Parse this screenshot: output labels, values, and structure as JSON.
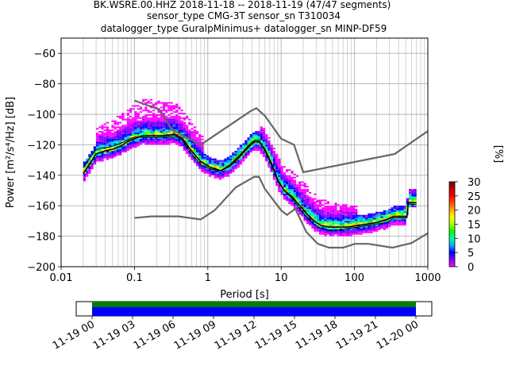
{
  "chart_data": {
    "type": "ppsd",
    "title_lines": [
      "BK.WSRE.00.HHZ   2018-11-18 -- 2018-11-19  (47/47 segments)",
      "sensor_type CMG-3T sensor_sn T310034",
      "datalogger_type GuralpMinimus+ datalogger_sn MINP-DF59"
    ],
    "xlabel": "Period [s]",
    "ylabel": "Power [m²/s⁴/Hz] [dB]",
    "x_scale": "log",
    "xlim": [
      0.01,
      1000
    ],
    "ylim": [
      -200,
      -50
    ],
    "x_ticks": [
      {
        "value": 0.01,
        "label": "0.01"
      },
      {
        "value": 0.1,
        "label": "0.1"
      },
      {
        "value": 1,
        "label": "1"
      },
      {
        "value": 10,
        "label": "10"
      },
      {
        "value": 100,
        "label": "100"
      },
      {
        "value": 1000,
        "label": "1000"
      }
    ],
    "y_ticks": [
      {
        "value": -60,
        "label": "−60"
      },
      {
        "value": -80,
        "label": "−80"
      },
      {
        "value": -100,
        "label": "−100"
      },
      {
        "value": -120,
        "label": "−120"
      },
      {
        "value": -140,
        "label": "−140"
      },
      {
        "value": -160,
        "label": "−160"
      },
      {
        "value": -180,
        "label": "−180"
      },
      {
        "value": -200,
        "label": "−200"
      }
    ],
    "grid": true,
    "noise_model_high": [
      [
        0.1,
        -91
      ],
      [
        0.22,
        -97
      ],
      [
        0.32,
        -110
      ],
      [
        0.8,
        -120
      ],
      [
        3.8,
        -98
      ],
      [
        4.6,
        -96
      ],
      [
        6,
        -101
      ],
      [
        10,
        -116
      ],
      [
        15,
        -120
      ],
      [
        20,
        -138
      ],
      [
        354,
        -126
      ],
      [
        1000,
        -111
      ]
    ],
    "noise_model_low": [
      [
        0.1,
        -168
      ],
      [
        0.17,
        -167
      ],
      [
        0.4,
        -167
      ],
      [
        0.8,
        -169
      ],
      [
        1.24,
        -163
      ],
      [
        2.4,
        -148
      ],
      [
        4.3,
        -141
      ],
      [
        5,
        -141
      ],
      [
        6,
        -149
      ],
      [
        10,
        -163
      ],
      [
        12,
        -166
      ],
      [
        15.6,
        -162
      ],
      [
        21.9,
        -177
      ],
      [
        31.6,
        -185
      ],
      [
        45,
        -187.5
      ],
      [
        70,
        -187.5
      ],
      [
        101,
        -185
      ],
      [
        154,
        -185
      ],
      [
        328,
        -187.5
      ],
      [
        600,
        -184.5
      ],
      [
        1000,
        -178
      ]
    ],
    "mean_curve": [
      [
        0.02,
        -139
      ],
      [
        0.025,
        -132
      ],
      [
        0.03,
        -126
      ],
      [
        0.04,
        -124
      ],
      [
        0.05,
        -123
      ],
      [
        0.065,
        -121
      ],
      [
        0.08,
        -118
      ],
      [
        0.1,
        -116
      ],
      [
        0.13,
        -114
      ],
      [
        0.18,
        -114
      ],
      [
        0.26,
        -114
      ],
      [
        0.35,
        -113
      ],
      [
        0.45,
        -116
      ],
      [
        0.6,
        -124
      ],
      [
        0.8,
        -131
      ],
      [
        1.1,
        -135
      ],
      [
        1.5,
        -137
      ],
      [
        2,
        -134
      ],
      [
        2.7,
        -128
      ],
      [
        3.5,
        -122
      ],
      [
        4.3,
        -118
      ],
      [
        5,
        -118
      ],
      [
        6,
        -123
      ],
      [
        7.5,
        -133
      ],
      [
        9,
        -143
      ],
      [
        11,
        -150
      ],
      [
        14,
        -154
      ],
      [
        18,
        -160
      ],
      [
        22,
        -165
      ],
      [
        28,
        -170
      ],
      [
        35,
        -173
      ],
      [
        45,
        -174
      ],
      [
        60,
        -174
      ],
      [
        80,
        -174
      ],
      [
        110,
        -173
      ],
      [
        150,
        -172
      ],
      [
        200,
        -171
      ],
      [
        280,
        -169
      ],
      [
        340,
        -167
      ],
      [
        430,
        -167
      ],
      [
        520,
        -167
      ],
      [
        540,
        -158
      ],
      [
        700,
        -158
      ]
    ],
    "mode_curve": [
      [
        0.02,
        -135
      ],
      [
        0.025,
        -128
      ],
      [
        0.03,
        -123
      ],
      [
        0.04,
        -122
      ],
      [
        0.05,
        -121
      ],
      [
        0.065,
        -119
      ],
      [
        0.08,
        -117
      ],
      [
        0.1,
        -115
      ],
      [
        0.13,
        -115
      ],
      [
        0.18,
        -115
      ],
      [
        0.26,
        -115
      ],
      [
        0.35,
        -114
      ],
      [
        0.45,
        -117
      ],
      [
        0.6,
        -126
      ],
      [
        0.8,
        -133
      ],
      [
        1.1,
        -136
      ],
      [
        1.5,
        -137
      ],
      [
        2,
        -133
      ],
      [
        2.7,
        -127
      ],
      [
        3.5,
        -121
      ],
      [
        4.3,
        -117
      ],
      [
        5,
        -117
      ],
      [
        6,
        -124
      ],
      [
        7.5,
        -134
      ],
      [
        9,
        -144
      ],
      [
        11,
        -150
      ],
      [
        14,
        -155
      ],
      [
        18,
        -162
      ],
      [
        22,
        -167
      ],
      [
        28,
        -172
      ],
      [
        35,
        -175
      ],
      [
        45,
        -176
      ],
      [
        60,
        -176
      ],
      [
        80,
        -175
      ],
      [
        110,
        -174
      ],
      [
        150,
        -173
      ],
      [
        200,
        -172
      ],
      [
        280,
        -171
      ],
      [
        340,
        -168
      ],
      [
        430,
        -168
      ],
      [
        520,
        -168
      ],
      [
        540,
        -159
      ],
      [
        700,
        -159
      ]
    ],
    "colorbar": {
      "label": "[%]",
      "min": 0,
      "max": 30,
      "ticks": [
        0,
        5,
        10,
        15,
        20,
        25,
        30
      ],
      "colors": [
        "#ffffff",
        "#ff00ff",
        "#8000ff",
        "#0000ff",
        "#00aaff",
        "#00ffaa",
        "#00ff00",
        "#aaff00",
        "#ffff00",
        "#ffaa00",
        "#ff5500",
        "#ff0000",
        "#bb0000",
        "#7a0000"
      ]
    }
  },
  "time_coverage": {
    "ticks": [
      "11-19 00",
      "11-19 03",
      "11-19 06",
      "11-19 09",
      "11-19 12",
      "11-19 15",
      "11-19 18",
      "11-19 21",
      "11-20 00"
    ],
    "data_color": "#0000ff",
    "gap_color": "#008000"
  }
}
